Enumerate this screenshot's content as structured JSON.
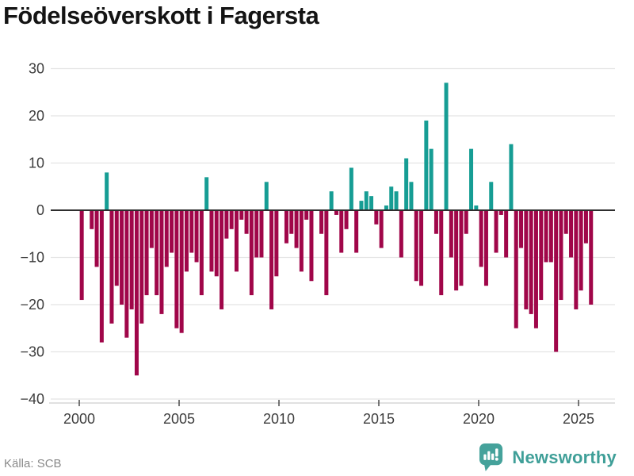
{
  "title": "Födelseöverskott i Fagersta",
  "source": "Källa: SCB",
  "branding": {
    "name": "Newsworthy",
    "icon": "newsworthy-bubble-chart-icon",
    "color": "#45a29b"
  },
  "chart_data": {
    "type": "bar",
    "title": "Födelseöverskott i Fagersta",
    "x_unit": "quarter",
    "x_start": "2000-Q1",
    "x_end": "2025-Q3",
    "xticks": [
      2000,
      2005,
      2010,
      2015,
      2020,
      2025
    ],
    "yticks": [
      30,
      20,
      10,
      0,
      -10,
      -20,
      -30,
      -40
    ],
    "ylim": [
      -40,
      30
    ],
    "grid": "horizontal",
    "legend": "none",
    "positive_color": "#169d94",
    "negative_color": "#a00649",
    "values": [
      -19,
      0,
      -4,
      -12,
      -28,
      8,
      -24,
      -16,
      -20,
      -27,
      -21,
      -35,
      -24,
      -18,
      -8,
      -18,
      -22,
      -12,
      -9,
      -25,
      -26,
      -13,
      -9,
      -11,
      -18,
      7,
      -13,
      -14,
      -21,
      -6,
      -4,
      -13,
      -2,
      -5,
      -18,
      -10,
      -10,
      6,
      -21,
      -14,
      0,
      -7,
      -5,
      -8,
      -13,
      -2,
      -15,
      0,
      -5,
      -18,
      4,
      -1,
      -9,
      -4,
      9,
      -9,
      2,
      4,
      3,
      -3,
      -8,
      1,
      5,
      4,
      -10,
      11,
      6,
      -15,
      -16,
      19,
      13,
      -5,
      -18,
      27,
      -10,
      -17,
      -16,
      -5,
      13,
      1,
      -12,
      -16,
      6,
      -9,
      -1,
      -10,
      14,
      -25,
      -8,
      -21,
      -22,
      -25,
      -19,
      -11,
      -11,
      -30,
      -19,
      -5,
      -10,
      -21,
      -17,
      -7,
      -20
    ]
  }
}
